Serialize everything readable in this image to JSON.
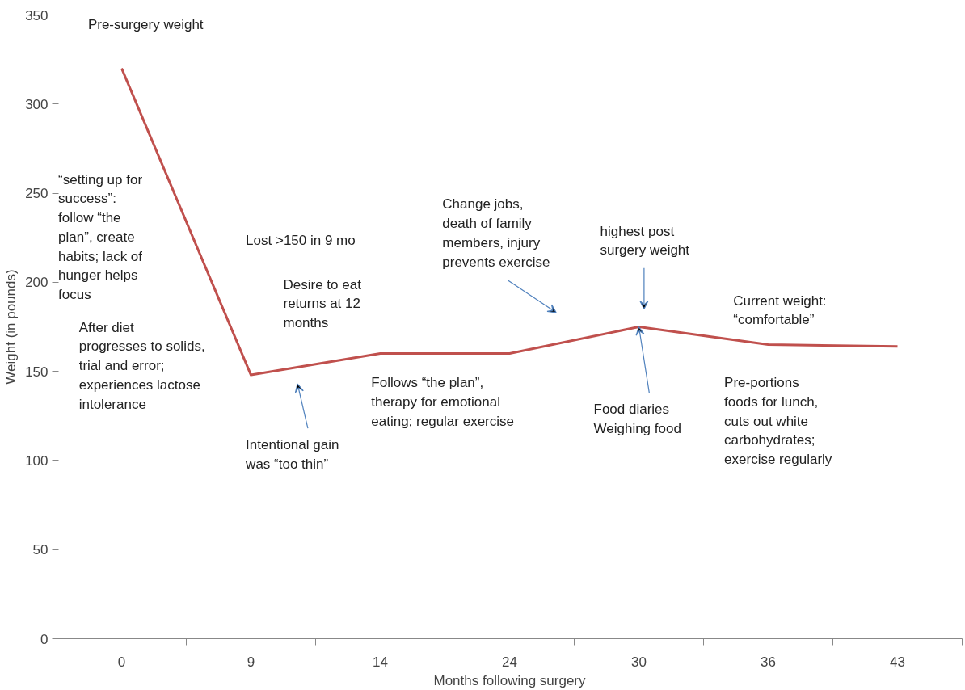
{
  "chart_data": {
    "type": "line",
    "xlabel": "Months following surgery",
    "ylabel": "Weight (in pounds)",
    "categories": [
      "0",
      "9",
      "14",
      "24",
      "30",
      "36",
      "43"
    ],
    "series": [
      {
        "color": "#c0504d",
        "values": [
          320,
          148,
          160,
          160,
          175,
          165,
          164
        ]
      }
    ],
    "ylim": [
      0,
      350
    ],
    "yticks": [
      0,
      50,
      100,
      150,
      200,
      250,
      300,
      350
    ],
    "grid": false,
    "marker": "none",
    "line_style": "solid",
    "annotations": [
      "Pre-surgery weight",
      "“setting up for\nsuccess”:\nfollow “the\nplan”, create\nhabits; lack of\nhunger helps\nfocus",
      "Lost >150 in 9 mo",
      "Desire to eat\nreturns at 12\nmonths",
      "After diet\nprogresses to solids,\ntrial and error;\nexperiences lactose\nintolerance",
      "Change jobs,\ndeath of family\nmembers, injury\nprevents exercise",
      "highest post\nsurgery weight",
      "Current weight:\n“comfortable”",
      "Intentional gain\nwas “too thin”",
      "Follows “the plan”,\ntherapy for emotional\neating; regular exercise",
      {
        "text": "Food diaries\nWeighing food",
        "x": "30",
        "y": 175
      },
      "Pre-portions\nfoods for lunch,\ncuts out white\ncarbohydrates;\nexercise regularly"
    ]
  }
}
